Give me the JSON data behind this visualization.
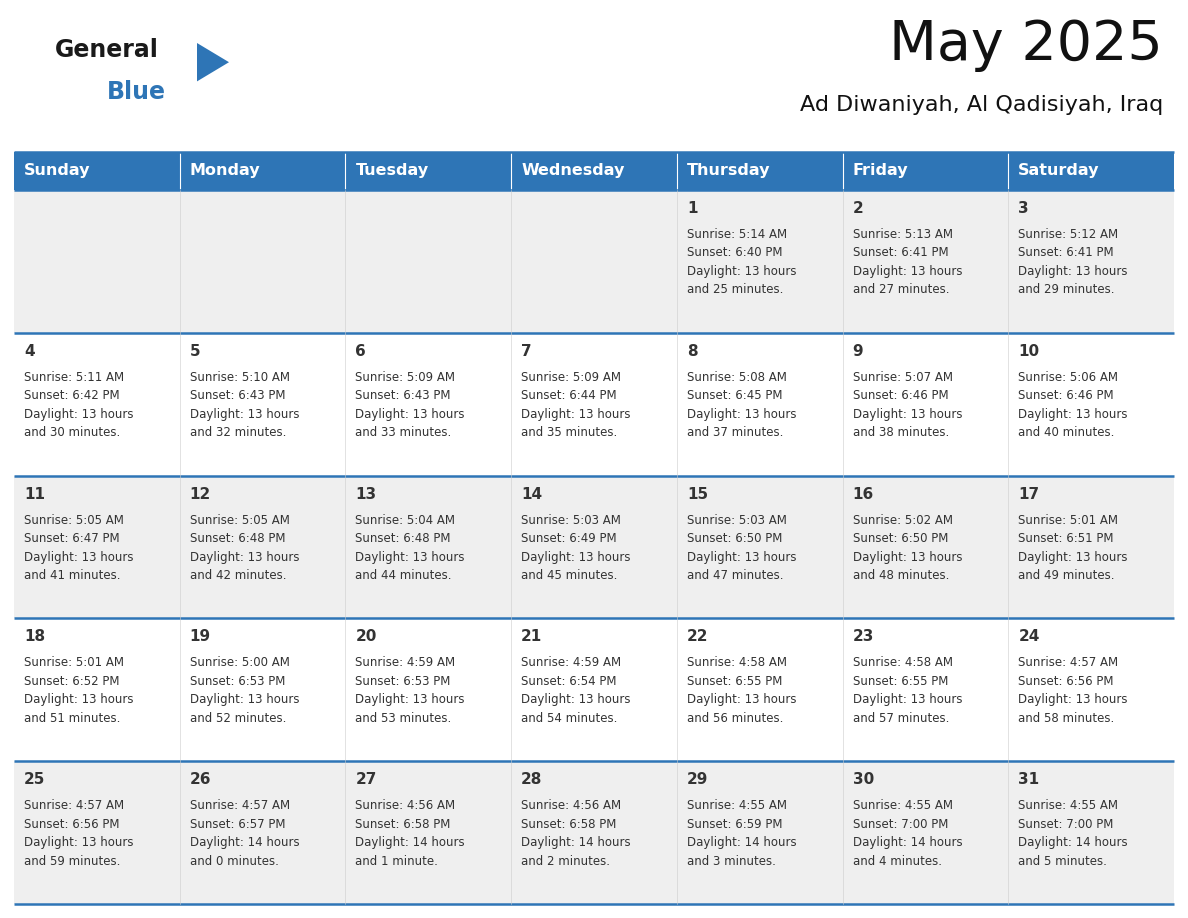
{
  "title": "May 2025",
  "subtitle": "Ad Diwaniyah, Al Qadisiyah, Iraq",
  "header_bg": "#2E75B6",
  "header_text": "#FFFFFF",
  "row_bg_odd": "#EFEFEF",
  "row_bg_even": "#FFFFFF",
  "border_color": "#2E75B6",
  "day_number_color": "#333333",
  "cell_text_color": "#333333",
  "logo_general_color": "#1a1a1a",
  "logo_blue_color": "#2E75B6",
  "logo_triangle_color": "#2E75B6",
  "days_of_week": [
    "Sunday",
    "Monday",
    "Tuesday",
    "Wednesday",
    "Thursday",
    "Friday",
    "Saturday"
  ],
  "weeks": [
    [
      {
        "day": null,
        "sunrise": null,
        "sunset": null,
        "daylight": null
      },
      {
        "day": null,
        "sunrise": null,
        "sunset": null,
        "daylight": null
      },
      {
        "day": null,
        "sunrise": null,
        "sunset": null,
        "daylight": null
      },
      {
        "day": null,
        "sunrise": null,
        "sunset": null,
        "daylight": null
      },
      {
        "day": 1,
        "sunrise": "5:14 AM",
        "sunset": "6:40 PM",
        "daylight": "13 hours and 25 minutes."
      },
      {
        "day": 2,
        "sunrise": "5:13 AM",
        "sunset": "6:41 PM",
        "daylight": "13 hours and 27 minutes."
      },
      {
        "day": 3,
        "sunrise": "5:12 AM",
        "sunset": "6:41 PM",
        "daylight": "13 hours and 29 minutes."
      }
    ],
    [
      {
        "day": 4,
        "sunrise": "5:11 AM",
        "sunset": "6:42 PM",
        "daylight": "13 hours and 30 minutes."
      },
      {
        "day": 5,
        "sunrise": "5:10 AM",
        "sunset": "6:43 PM",
        "daylight": "13 hours and 32 minutes."
      },
      {
        "day": 6,
        "sunrise": "5:09 AM",
        "sunset": "6:43 PM",
        "daylight": "13 hours and 33 minutes."
      },
      {
        "day": 7,
        "sunrise": "5:09 AM",
        "sunset": "6:44 PM",
        "daylight": "13 hours and 35 minutes."
      },
      {
        "day": 8,
        "sunrise": "5:08 AM",
        "sunset": "6:45 PM",
        "daylight": "13 hours and 37 minutes."
      },
      {
        "day": 9,
        "sunrise": "5:07 AM",
        "sunset": "6:46 PM",
        "daylight": "13 hours and 38 minutes."
      },
      {
        "day": 10,
        "sunrise": "5:06 AM",
        "sunset": "6:46 PM",
        "daylight": "13 hours and 40 minutes."
      }
    ],
    [
      {
        "day": 11,
        "sunrise": "5:05 AM",
        "sunset": "6:47 PM",
        "daylight": "13 hours and 41 minutes."
      },
      {
        "day": 12,
        "sunrise": "5:05 AM",
        "sunset": "6:48 PM",
        "daylight": "13 hours and 42 minutes."
      },
      {
        "day": 13,
        "sunrise": "5:04 AM",
        "sunset": "6:48 PM",
        "daylight": "13 hours and 44 minutes."
      },
      {
        "day": 14,
        "sunrise": "5:03 AM",
        "sunset": "6:49 PM",
        "daylight": "13 hours and 45 minutes."
      },
      {
        "day": 15,
        "sunrise": "5:03 AM",
        "sunset": "6:50 PM",
        "daylight": "13 hours and 47 minutes."
      },
      {
        "day": 16,
        "sunrise": "5:02 AM",
        "sunset": "6:50 PM",
        "daylight": "13 hours and 48 minutes."
      },
      {
        "day": 17,
        "sunrise": "5:01 AM",
        "sunset": "6:51 PM",
        "daylight": "13 hours and 49 minutes."
      }
    ],
    [
      {
        "day": 18,
        "sunrise": "5:01 AM",
        "sunset": "6:52 PM",
        "daylight": "13 hours and 51 minutes."
      },
      {
        "day": 19,
        "sunrise": "5:00 AM",
        "sunset": "6:53 PM",
        "daylight": "13 hours and 52 minutes."
      },
      {
        "day": 20,
        "sunrise": "4:59 AM",
        "sunset": "6:53 PM",
        "daylight": "13 hours and 53 minutes."
      },
      {
        "day": 21,
        "sunrise": "4:59 AM",
        "sunset": "6:54 PM",
        "daylight": "13 hours and 54 minutes."
      },
      {
        "day": 22,
        "sunrise": "4:58 AM",
        "sunset": "6:55 PM",
        "daylight": "13 hours and 56 minutes."
      },
      {
        "day": 23,
        "sunrise": "4:58 AM",
        "sunset": "6:55 PM",
        "daylight": "13 hours and 57 minutes."
      },
      {
        "day": 24,
        "sunrise": "4:57 AM",
        "sunset": "6:56 PM",
        "daylight": "13 hours and 58 minutes."
      }
    ],
    [
      {
        "day": 25,
        "sunrise": "4:57 AM",
        "sunset": "6:56 PM",
        "daylight": "13 hours and 59 minutes."
      },
      {
        "day": 26,
        "sunrise": "4:57 AM",
        "sunset": "6:57 PM",
        "daylight": "14 hours and 0 minutes."
      },
      {
        "day": 27,
        "sunrise": "4:56 AM",
        "sunset": "6:58 PM",
        "daylight": "14 hours and 1 minute."
      },
      {
        "day": 28,
        "sunrise": "4:56 AM",
        "sunset": "6:58 PM",
        "daylight": "14 hours and 2 minutes."
      },
      {
        "day": 29,
        "sunrise": "4:55 AM",
        "sunset": "6:59 PM",
        "daylight": "14 hours and 3 minutes."
      },
      {
        "day": 30,
        "sunrise": "4:55 AM",
        "sunset": "7:00 PM",
        "daylight": "14 hours and 4 minutes."
      },
      {
        "day": 31,
        "sunrise": "4:55 AM",
        "sunset": "7:00 PM",
        "daylight": "14 hours and 5 minutes."
      }
    ]
  ]
}
